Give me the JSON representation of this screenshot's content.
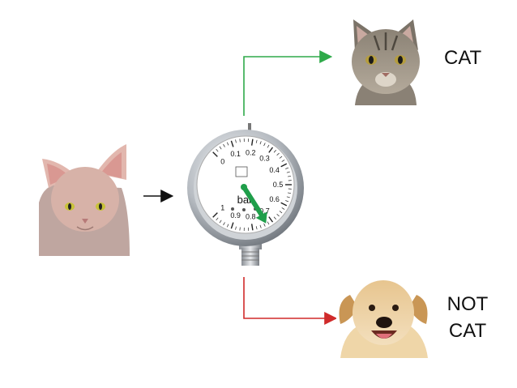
{
  "labels": {
    "cat": "CAT",
    "not_cat_line1": "NOT",
    "not_cat_line2": "CAT"
  },
  "gauge": {
    "unit": "bar",
    "ticks": [
      "0",
      "0.1",
      "0.2",
      "0.3",
      "0.4",
      "0.5",
      "0.6",
      "0.7",
      "0.8",
      "0.9",
      "1"
    ],
    "needle_value": 0.73
  },
  "colors": {
    "cat_arrow": "#2faa4a",
    "not_cat_arrow": "#d02a2a",
    "input_arrow": "#111111",
    "needle": "#1f9e4a"
  }
}
